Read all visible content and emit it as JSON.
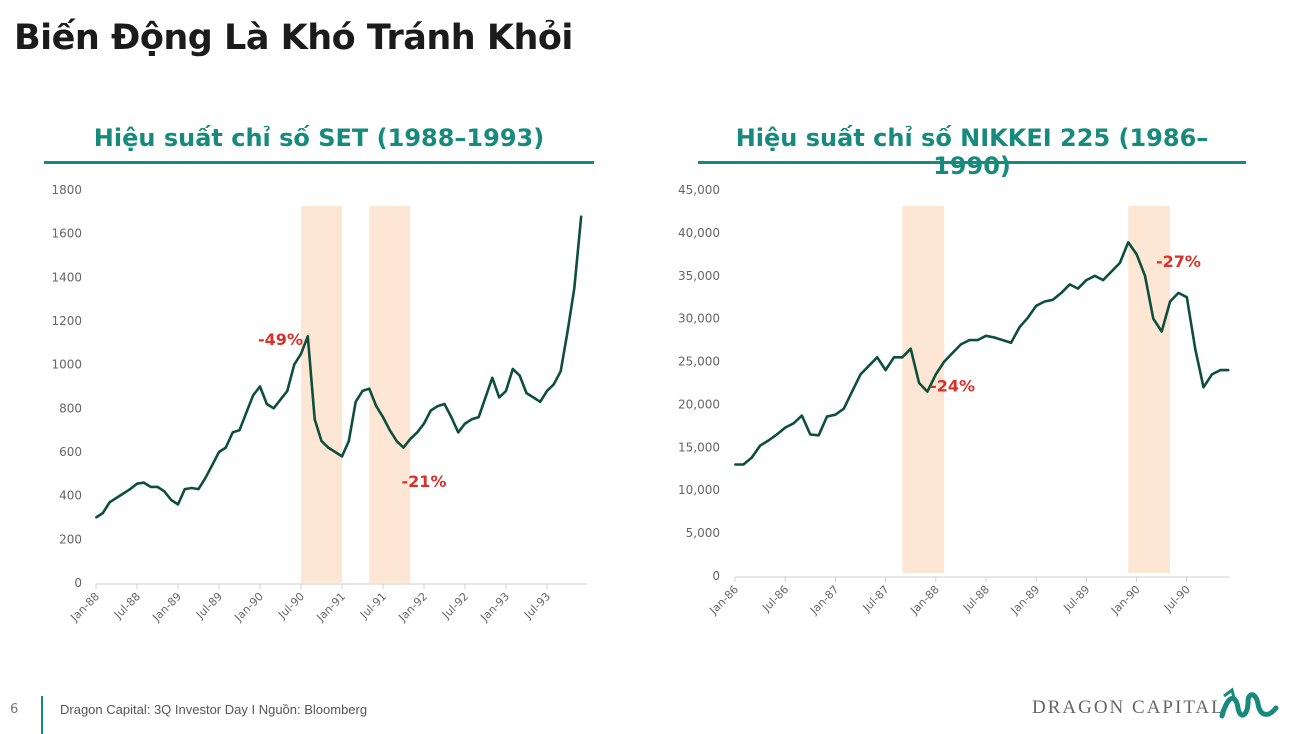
{
  "page_title": "Biến Động Là Khó Tránh Khỏi",
  "footer": {
    "page_number": "6",
    "source": "Dragon Capital: 3Q Investor Day I Nguồn: Bloomberg",
    "logo_text": "DRAGON CAPITAL"
  },
  "colors": {
    "line": "#0d4f3c",
    "shade": "#fde6d4",
    "accent": "#168a7c",
    "annotation": "#d9302c"
  },
  "chart_data": [
    {
      "type": "line",
      "title": "Hiệu suất chỉ số SET (1988–1993)",
      "x_start": "Jan-88",
      "frequency": "monthly",
      "x_tick_labels": [
        "Jan-88",
        "Jul-88",
        "Jan-89",
        "Jul-89",
        "Jan-90",
        "Jul-90",
        "Jan-91",
        "Jul-91",
        "Jan-92",
        "Jul-92",
        "Jan-93",
        "Jul-93"
      ],
      "y_tick_labels": [
        "0",
        "200",
        "400",
        "600",
        "800",
        "1000",
        "1200",
        "1400",
        "1600",
        "1800"
      ],
      "ylim": [
        0,
        1800
      ],
      "grid": false,
      "values": [
        300,
        320,
        370,
        390,
        410,
        430,
        455,
        460,
        440,
        440,
        420,
        380,
        360,
        430,
        435,
        430,
        480,
        540,
        600,
        620,
        690,
        700,
        780,
        860,
        900,
        820,
        800,
        840,
        880,
        1000,
        1050,
        1130,
        750,
        650,
        620,
        600,
        580,
        650,
        830,
        880,
        890,
        810,
        760,
        700,
        650,
        620,
        660,
        690,
        730,
        790,
        810,
        820,
        760,
        690,
        730,
        750,
        760,
        850,
        940,
        850,
        880,
        980,
        950,
        870,
        850,
        830,
        880,
        910,
        970,
        1150,
        1350,
        1680
      ],
      "shaded_periods": [
        [
          "Jul-90",
          "Jan-91"
        ],
        [
          "May-91",
          "Nov-91"
        ]
      ],
      "annotations": [
        "-49%",
        "-21%"
      ]
    },
    {
      "type": "line",
      "title": "Hiệu suất chỉ số NIKKEI 225 (1986–1990)",
      "x_start": "Jan-86",
      "frequency": "monthly",
      "x_tick_labels": [
        "Jan-86",
        "Jul-86",
        "Jan-87",
        "Jul-87",
        "Jan-88",
        "Jul-88",
        "Jan-89",
        "Jul-89",
        "Jan-90",
        "Jul-90"
      ],
      "y_tick_labels": [
        "0",
        "5,000",
        "10,000",
        "15,000",
        "20,000",
        "25,000",
        "30,000",
        "35,000",
        "40,000",
        "45,000"
      ],
      "ylim": [
        0,
        45000
      ],
      "grid": false,
      "values": [
        13000,
        13000,
        13800,
        15200,
        15800,
        16500,
        17300,
        17800,
        18700,
        16500,
        16400,
        18600,
        18800,
        19500,
        21500,
        23500,
        24500,
        25500,
        24000,
        25500,
        25500,
        26500,
        22500,
        21500,
        23500,
        25000,
        26000,
        27000,
        27500,
        27500,
        28000,
        27800,
        27500,
        27200,
        29000,
        30100,
        31500,
        32000,
        32200,
        33000,
        34000,
        33500,
        34500,
        35000,
        34500,
        35500,
        36500,
        38900,
        37500,
        35000,
        30000,
        28500,
        32000,
        33000,
        32500,
        26500,
        22000,
        23500,
        24000,
        24000
      ],
      "shaded_periods": [
        [
          "Sep-87",
          "Feb-88"
        ],
        [
          "Dec-89",
          "May-90"
        ]
      ],
      "annotations": [
        "-24%",
        "-27%"
      ]
    }
  ]
}
